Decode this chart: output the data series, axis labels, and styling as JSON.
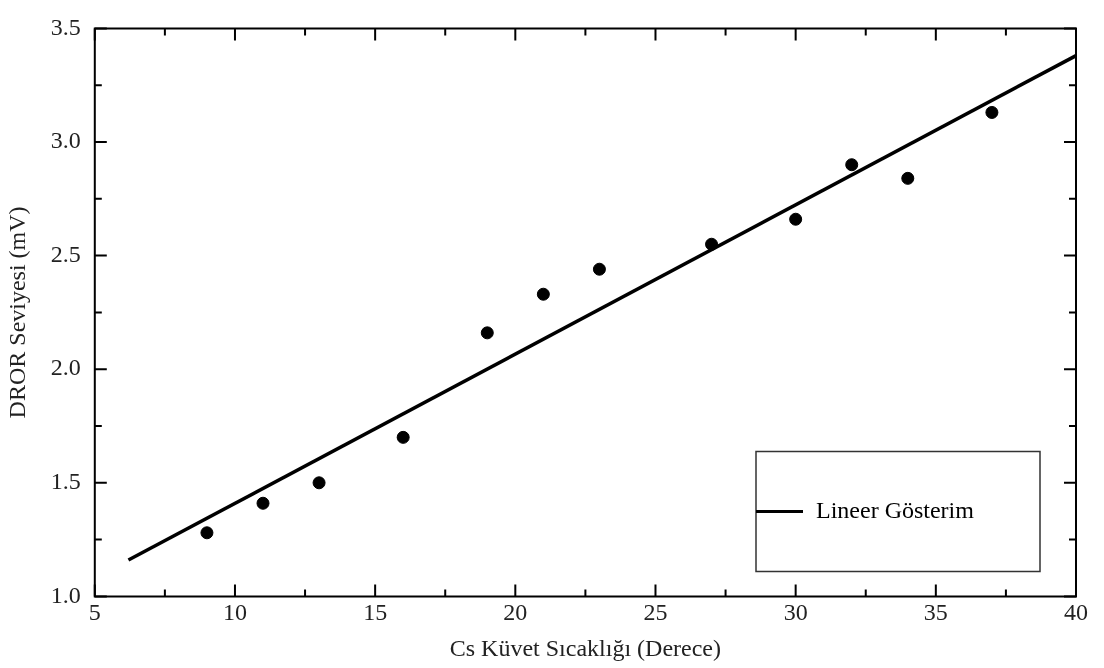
{
  "chart_data": {
    "type": "scatter",
    "xlabel": "Cs Küvet Sıcaklığı (Derece)",
    "ylabel": "DROR Seviyesi (mV)",
    "xlim": [
      5,
      40
    ],
    "xticks": [
      5,
      {
        "value": 7.5,
        "label": null
      },
      10,
      {
        "value": 12.5,
        "label": null
      },
      15,
      {
        "value": 17.5,
        "label": null
      },
      20,
      {
        "value": 22.5,
        "label": null
      },
      25,
      {
        "value": 27.5,
        "label": null
      },
      30,
      {
        "value": 32.5,
        "label": null
      },
      35,
      {
        "value": 37.5,
        "label": null
      },
      40
    ],
    "ylim": [
      1.0,
      3.5
    ],
    "yticks": [
      {
        "value": 1.0,
        "label": "1.0"
      },
      {
        "value": 1.25,
        "label": null
      },
      1.5,
      {
        "value": 1.75,
        "label": null
      },
      {
        "value": 2.0,
        "label": "2.0"
      },
      {
        "value": 2.25,
        "label": null
      },
      2.5,
      {
        "value": 2.75,
        "label": null
      },
      {
        "value": 3.0,
        "label": "3.0"
      },
      {
        "value": 3.25,
        "label": null
      },
      3.5
    ],
    "grid": false,
    "legend": "bottom right",
    "series": [
      {
        "marker": "circle",
        "color": "#000000",
        "x": [
          9,
          11,
          13,
          16,
          19,
          21,
          23,
          27,
          30,
          32,
          34,
          37
        ],
        "values": [
          1.28,
          1.41,
          1.5,
          1.7,
          2.16,
          2.33,
          2.44,
          2.55,
          2.66,
          2.9,
          2.84,
          3.13
        ]
      },
      {
        "type": "line",
        "name": "Lineer Gösterim",
        "marker": "none",
        "color": "#000000",
        "line_style": "solid",
        "x": [
          6.2,
          40
        ],
        "values": [
          1.16,
          3.38
        ]
      }
    ]
  }
}
